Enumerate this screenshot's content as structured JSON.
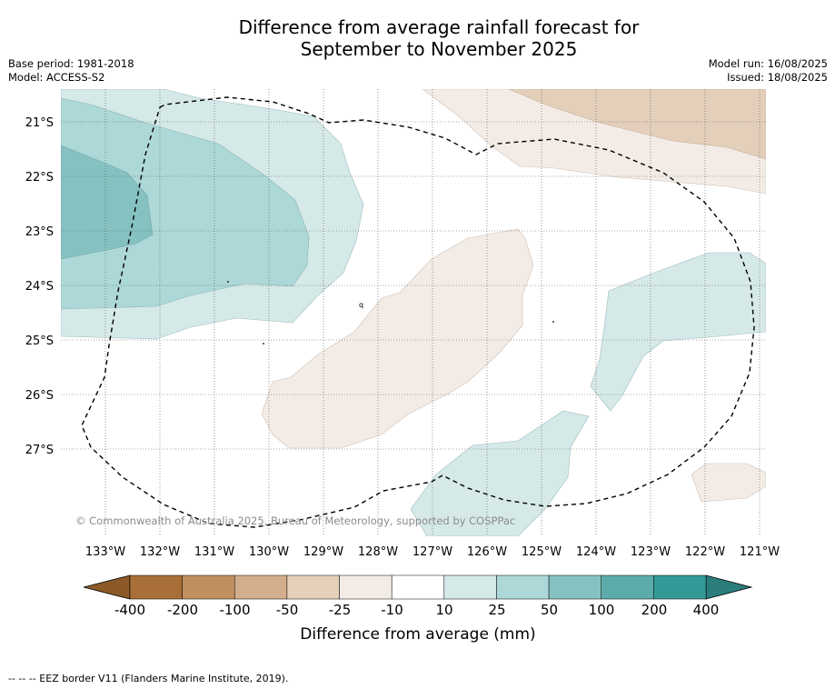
{
  "title": {
    "line1": "Difference from average rainfall forecast for",
    "line2": "September to November 2025"
  },
  "meta_left": {
    "base_period": "Base period: 1981-2018",
    "model": "Model: ACCESS-S2"
  },
  "meta_right": {
    "model_run": "Model run: 16/08/2025",
    "issued": "Issued: 18/08/2025"
  },
  "map": {
    "lat_labels": [
      "21°S",
      "22°S",
      "23°S",
      "24°S",
      "25°S",
      "26°S",
      "27°S"
    ],
    "lon_labels": [
      "133°W",
      "132°W",
      "131°W",
      "130°W",
      "129°W",
      "128°W",
      "127°W",
      "126°W",
      "125°W",
      "124°W",
      "123°W",
      "122°W",
      "121°W"
    ],
    "copyright": "© Commonwealth of Australia 2025, Bureau of Meteorology, supported by COSPPac",
    "region_label": "q"
  },
  "colorbar": {
    "labels": [
      "-400",
      "-200",
      "-100",
      "-50",
      "-25",
      "-10",
      "10",
      "25",
      "50",
      "100",
      "200",
      "400"
    ],
    "colors": [
      "#a86f38",
      "#bf8f60",
      "#d3ae8c",
      "#e3cfba",
      "#f3ece6",
      "#ffffff",
      "#d5e9e8",
      "#acd8d7",
      "#85c1c0",
      "#5cabab",
      "#339a97"
    ],
    "under_color": "#8c5a28",
    "over_color": "#2a7d7b",
    "title": "Difference from average (mm)"
  },
  "legend": {
    "eez_line": "--  --  -- EEZ border V11 (Flanders Marine Institute, 2019)."
  }
}
